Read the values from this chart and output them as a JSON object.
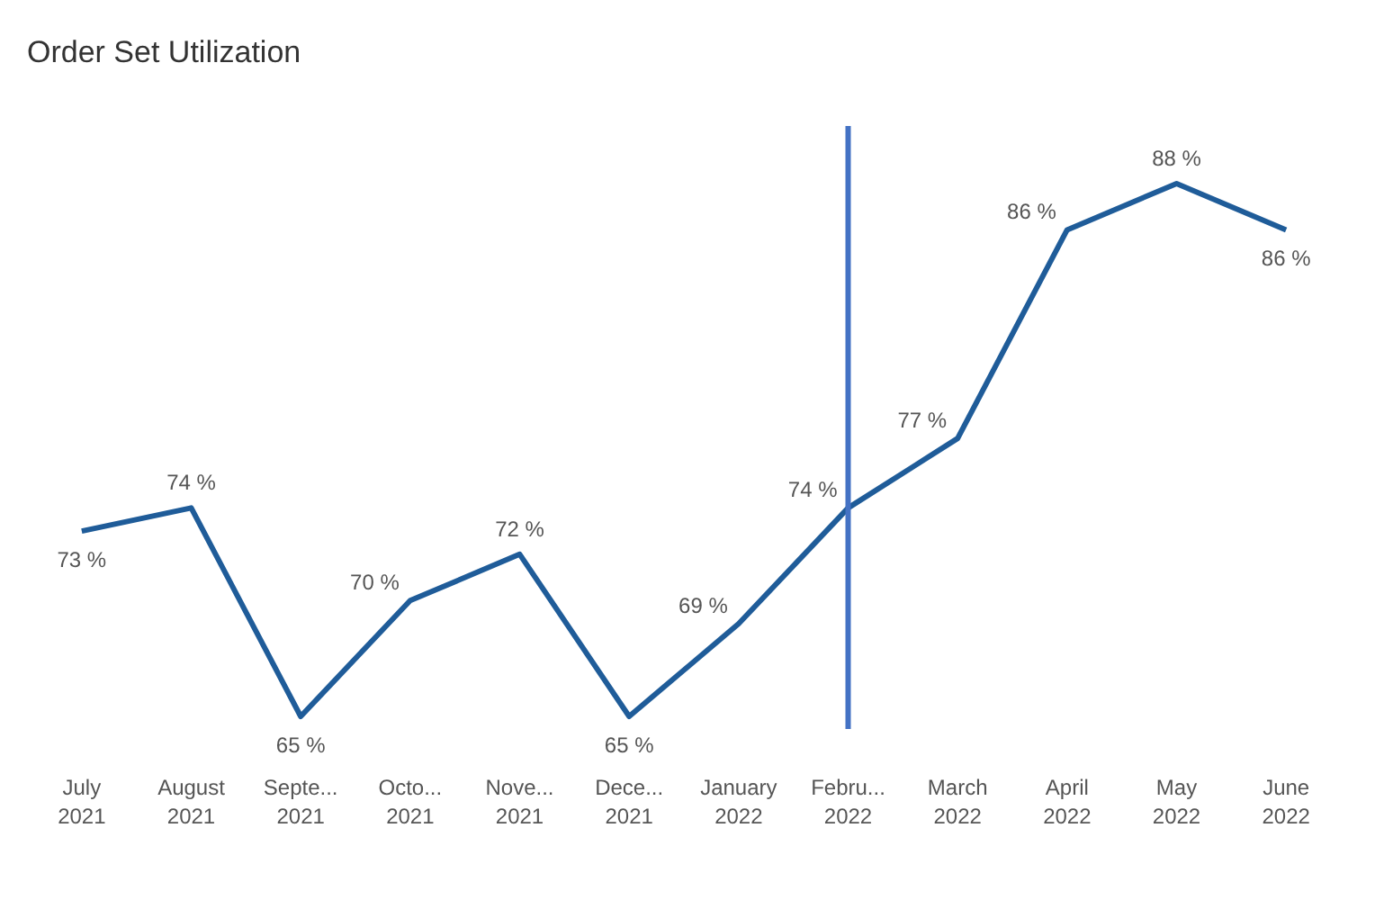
{
  "chart_data": {
    "type": "line",
    "title": "Order Set Utilization",
    "categories": [
      "July 2021",
      "August 2021",
      "Septe... 2021",
      "Octo... 2021",
      "Nove... 2021",
      "Dece... 2021",
      "January 2022",
      "Febru... 2022",
      "March 2022",
      "April 2022",
      "May 2022",
      "June 2022"
    ],
    "series": [
      {
        "color": "#1f5c99",
        "values": [
          73,
          74,
          65,
          70,
          72,
          65,
          69,
          74,
          77,
          86,
          88,
          86
        ],
        "value_labels": [
          "73 %",
          "74 %",
          "65 %",
          "70 %",
          "72 %",
          "65 %",
          "69 %",
          "74 %",
          "77 %",
          "86 %",
          "88 %",
          "86 %"
        ]
      }
    ],
    "ref_lines": [
      {
        "axis": "x",
        "value": "Febru... 2022",
        "color": "#4472c4"
      }
    ],
    "grid": false,
    "marker": "none",
    "line_style": "solid"
  }
}
